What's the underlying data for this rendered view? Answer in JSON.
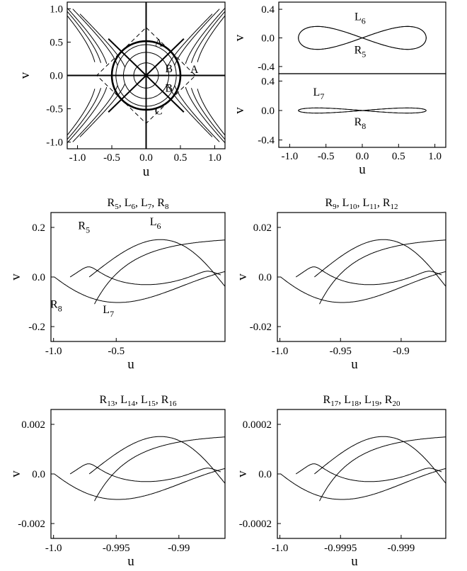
{
  "chart_data": [
    {
      "id": "phase-portrait",
      "type": "line",
      "xlabel": "u",
      "ylabel": "v",
      "xlim": [
        -1.15,
        1.15
      ],
      "ylim": [
        -1.1,
        1.1
      ],
      "x_ticks": [
        "-1.0",
        "-0.5",
        "0.0",
        "0.5",
        "1.0"
      ],
      "y_ticks": [
        "1.0",
        "0.5",
        "0.0",
        "-0.5",
        "-1.0"
      ],
      "contour_levels": [
        0.08,
        0.15,
        0.3,
        0.4,
        0.52
      ],
      "circle_radius": 0.5,
      "region_labels": [
        {
          "text": "A",
          "u": 0.1,
          "v": 0.5
        },
        {
          "text": "A",
          "u": 0.62,
          "v": 0.1
        },
        {
          "text": "B",
          "u": 0.25,
          "v": 0.11
        },
        {
          "text": "B",
          "u": 0.25,
          "v": -0.18
        },
        {
          "text": "C",
          "u": 0.1,
          "v": -0.52
        }
      ],
      "grid": false
    },
    {
      "id": "top-right-upper",
      "type": "line",
      "ylabel": "v",
      "xlim": [
        -1.15,
        1.15
      ],
      "ylim": [
        -0.5,
        0.5
      ],
      "y_ticks": [
        "0.4",
        "0.0",
        "-0.4"
      ],
      "series": [
        {
          "name": "L6",
          "amp": 0.16
        },
        {
          "name": "R5",
          "amp": -0.16
        }
      ],
      "labels": [
        {
          "base": "L",
          "sub": "6",
          "u": -0.03,
          "v": 0.25
        },
        {
          "base": "R",
          "sub": "5",
          "u": -0.03,
          "v": -0.22
        }
      ]
    },
    {
      "id": "top-right-lower",
      "type": "line",
      "xlabel": "u",
      "ylabel": "v",
      "xlim": [
        -1.15,
        1.15
      ],
      "ylim": [
        -0.5,
        0.5
      ],
      "x_ticks": [
        "-1.0",
        "-0.5",
        "0.0",
        "0.5",
        "1.0"
      ],
      "y_ticks": [
        "0.4",
        "0.0",
        "-0.4"
      ],
      "series": [
        {
          "name": "L7",
          "amp": 0.035,
          "dashed": true
        },
        {
          "name": "R8",
          "amp": -0.035
        }
      ],
      "labels": [
        {
          "base": "L",
          "sub": "7",
          "u": -0.6,
          "v": 0.2
        },
        {
          "base": "R",
          "sub": "8",
          "u": -0.03,
          "v": -0.2
        }
      ]
    },
    {
      "id": "zoom-1",
      "type": "line",
      "title_parts": [
        [
          "R",
          "5"
        ],
        [
          "L",
          "6"
        ],
        [
          "L",
          "7"
        ],
        [
          "R",
          "8"
        ]
      ],
      "xlabel": "u",
      "ylabel": "v",
      "x_ticks": [
        "-1.0",
        "-0.5"
      ],
      "y_ticks": [
        "0.2",
        "0.0",
        "-0.2"
      ],
      "x_tick_pos": [
        0.0,
        0.5
      ],
      "y_tick_pos": [
        0.2,
        0.0,
        -0.2
      ],
      "ylim": [
        -0.26,
        0.26
      ],
      "labels": [
        {
          "base": "R",
          "sub": "5",
          "fx": 0.19,
          "fy": 0.13
        },
        {
          "base": "L",
          "sub": "6",
          "fx": 0.6,
          "fy": 0.1
        },
        {
          "base": "L",
          "sub": "7",
          "fx": 0.33,
          "fy": 0.78
        },
        {
          "base": "R",
          "sub": "8",
          "fx": 0.03,
          "fy": 0.74
        }
      ]
    },
    {
      "id": "zoom-2",
      "type": "line",
      "title_parts": [
        [
          "R",
          "9"
        ],
        [
          "L",
          "10"
        ],
        [
          "L",
          "11"
        ],
        [
          "R",
          "12"
        ]
      ],
      "xlabel": "u",
      "ylabel": "v",
      "x_ticks": [
        "-1.0",
        "-0.95",
        "-0.9"
      ],
      "y_ticks": [
        "0.02",
        "0.0",
        "-0.02"
      ],
      "x_tick_pos": [
        0.0,
        0.5,
        1.0
      ],
      "y_tick_pos": [
        0.02,
        0.0,
        -0.02
      ],
      "ylim": [
        -0.026,
        0.026
      ],
      "labels": []
    },
    {
      "id": "zoom-3",
      "type": "line",
      "title_parts": [
        [
          "R",
          "13"
        ],
        [
          "L",
          "14"
        ],
        [
          "L",
          "15"
        ],
        [
          "R",
          "16"
        ]
      ],
      "xlabel": "u",
      "ylabel": "v",
      "x_ticks": [
        "-1.0",
        "-0.995",
        "-0.99"
      ],
      "y_ticks": [
        "0.002",
        "0.0",
        "-0.002"
      ],
      "x_tick_pos": [
        0.0,
        0.5,
        1.0
      ],
      "y_tick_pos": [
        0.002,
        0.0,
        -0.002
      ],
      "ylim": [
        -0.0026,
        0.0026
      ],
      "labels": []
    },
    {
      "id": "zoom-4",
      "type": "line",
      "title_parts": [
        [
          "R",
          "17"
        ],
        [
          "L",
          "18"
        ],
        [
          "L",
          "19"
        ],
        [
          "R",
          "20"
        ]
      ],
      "xlabel": "u",
      "ylabel": "v",
      "x_ticks": [
        "-1.0",
        "-0.9995",
        "-0.999"
      ],
      "y_ticks": [
        "0.0002",
        "0.0",
        "-0.0002"
      ],
      "x_tick_pos": [
        0.0,
        0.5,
        1.0
      ],
      "y_tick_pos": [
        0.0002,
        0.0,
        -0.0002
      ],
      "ylim": [
        -0.00026,
        0.00026
      ],
      "labels": []
    }
  ]
}
